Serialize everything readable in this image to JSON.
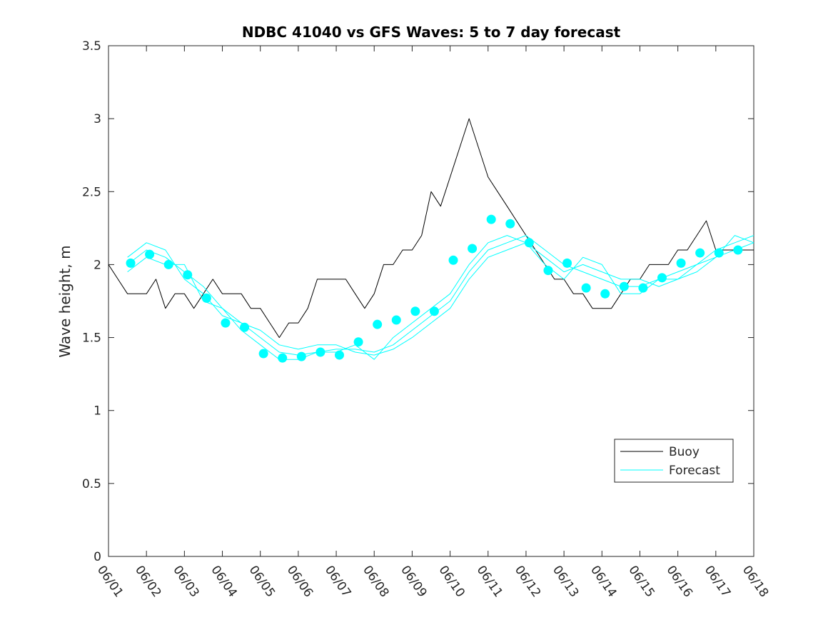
{
  "chart_data": {
    "type": "line",
    "title": "NDBC 41040 vs GFS Waves: 5 to 7 day forecast",
    "xlabel": "",
    "ylabel": "Wave height, m",
    "x_tick_labels": [
      "06/01",
      "06/02",
      "06/03",
      "06/04",
      "06/05",
      "06/06",
      "06/07",
      "06/08",
      "06/09",
      "06/10",
      "06/11",
      "06/12",
      "06/13",
      "06/14",
      "06/15",
      "06/16",
      "06/17",
      "06/18"
    ],
    "y_tick_labels": [
      "0",
      "0.5",
      "1",
      "1.5",
      "2",
      "2.5",
      "3",
      "3.5"
    ],
    "xlim": [
      "06/01",
      "06/18"
    ],
    "ylim": [
      0,
      3.5
    ],
    "grid": false,
    "legend_position": "lower-right",
    "colors": {
      "buoy": "#000000",
      "forecast": "#00ffff",
      "axis": "#262626"
    },
    "series": [
      {
        "name": "Buoy",
        "style": "line",
        "x": [
          "06/01 00:00",
          "06/01 06:00",
          "06/01 12:00",
          "06/01 18:00",
          "06/02 00:00",
          "06/02 06:00",
          "06/02 12:00",
          "06/02 18:00",
          "06/03 00:00",
          "06/03 06:00",
          "06/03 12:00",
          "06/03 18:00",
          "06/04 00:00",
          "06/04 06:00",
          "06/04 12:00",
          "06/04 18:00",
          "06/05 00:00",
          "06/05 06:00",
          "06/05 12:00",
          "06/05 18:00",
          "06/06 00:00",
          "06/06 06:00",
          "06/06 12:00",
          "06/06 18:00",
          "06/07 00:00",
          "06/07 06:00",
          "06/07 12:00",
          "06/07 18:00",
          "06/08 00:00",
          "06/08 06:00",
          "06/08 12:00",
          "06/08 18:00",
          "06/09 00:00",
          "06/09 06:00",
          "06/09 12:00",
          "06/09 18:00",
          "06/10 00:00",
          "06/10 06:00",
          "06/10 12:00",
          "06/10 18:00",
          "06/11 00:00",
          "06/11 06:00",
          "06/11 12:00",
          "06/11 18:00",
          "06/12 00:00",
          "06/12 06:00",
          "06/12 12:00",
          "06/12 18:00",
          "06/13 00:00",
          "06/13 06:00",
          "06/13 12:00",
          "06/13 18:00",
          "06/14 00:00",
          "06/14 06:00",
          "06/14 12:00",
          "06/14 18:00",
          "06/15 00:00",
          "06/15 06:00",
          "06/15 12:00",
          "06/15 18:00",
          "06/16 00:00",
          "06/16 06:00",
          "06/16 12:00",
          "06/16 18:00",
          "06/17 00:00",
          "06/17 06:00",
          "06/17 12:00",
          "06/17 18:00",
          "06/18 00:00"
        ],
        "values": [
          2.0,
          1.9,
          1.8,
          1.8,
          1.8,
          1.9,
          1.7,
          1.8,
          1.8,
          1.7,
          1.8,
          1.9,
          1.8,
          1.8,
          1.8,
          1.7,
          1.7,
          1.6,
          1.5,
          1.6,
          1.6,
          1.7,
          1.9,
          1.9,
          1.9,
          1.9,
          1.8,
          1.7,
          1.8,
          2.0,
          2.0,
          2.1,
          2.1,
          2.2,
          2.5,
          2.4,
          2.6,
          2.8,
          3.0,
          2.8,
          2.6,
          2.5,
          2.4,
          2.3,
          2.2,
          2.1,
          2.0,
          1.9,
          1.9,
          1.8,
          1.8,
          1.7,
          1.7,
          1.7,
          1.8,
          1.9,
          1.9,
          2.0,
          2.0,
          2.0,
          2.1,
          2.1,
          2.2,
          2.3,
          2.1,
          2.1,
          2.1,
          2.1,
          2.1
        ]
      },
      {
        "name": "Forecast",
        "style": "line",
        "x": [
          "06/01 12:00",
          "06/02 00:00",
          "06/02 12:00",
          "06/03 00:00",
          "06/03 12:00",
          "06/04 00:00",
          "06/04 12:00",
          "06/05 00:00",
          "06/05 12:00",
          "06/06 00:00",
          "06/06 12:00",
          "06/07 00:00",
          "06/07 12:00",
          "06/08 00:00",
          "06/08 12:00",
          "06/09 00:00",
          "06/09 12:00",
          "06/10 00:00",
          "06/10 12:00",
          "06/11 00:00",
          "06/11 12:00",
          "06/12 00:00",
          "06/12 12:00",
          "06/13 00:00",
          "06/13 12:00",
          "06/14 00:00",
          "06/14 12:00",
          "06/15 00:00",
          "06/15 12:00",
          "06/16 00:00",
          "06/16 12:00",
          "06/17 00:00",
          "06/17 12:00",
          "06/18 00:00"
        ],
        "values": [
          2.0,
          2.1,
          2.05,
          1.95,
          1.85,
          1.7,
          1.6,
          1.5,
          1.4,
          1.38,
          1.4,
          1.42,
          1.42,
          1.4,
          1.45,
          1.55,
          1.65,
          1.75,
          1.95,
          2.1,
          2.15,
          2.2,
          2.1,
          2.0,
          1.95,
          1.9,
          1.85,
          1.85,
          1.9,
          1.95,
          2.0,
          2.05,
          2.1,
          2.15
        ]
      },
      {
        "name": "",
        "style": "line",
        "x": [
          "06/01 12:00",
          "06/02 00:00",
          "06/02 12:00",
          "06/03 00:00",
          "06/03 12:00",
          "06/04 00:00",
          "06/04 12:00",
          "06/05 00:00",
          "06/05 12:00",
          "06/06 00:00",
          "06/06 12:00",
          "06/07 00:00",
          "06/07 12:00",
          "06/08 00:00",
          "06/08 12:00",
          "06/09 00:00",
          "06/09 12:00",
          "06/10 00:00",
          "06/10 12:00",
          "06/11 00:00",
          "06/11 12:00",
          "06/12 00:00",
          "06/12 12:00",
          "06/13 00:00",
          "06/13 12:00",
          "06/14 00:00",
          "06/14 12:00",
          "06/15 00:00",
          "06/15 12:00",
          "06/16 00:00",
          "06/16 12:00",
          "06/17 00:00",
          "06/17 12:00",
          "06/18 00:00"
        ],
        "values": [
          2.05,
          2.15,
          2.1,
          1.9,
          1.8,
          1.65,
          1.6,
          1.55,
          1.45,
          1.42,
          1.45,
          1.45,
          1.4,
          1.38,
          1.42,
          1.5,
          1.6,
          1.7,
          1.9,
          2.05,
          2.1,
          2.15,
          2.05,
          1.95,
          2.0,
          1.95,
          1.9,
          1.9,
          1.85,
          1.9,
          2.0,
          2.1,
          2.15,
          2.2
        ]
      },
      {
        "name": "",
        "style": "line",
        "x": [
          "06/01 12:00",
          "06/02 00:00",
          "06/02 12:00",
          "06/03 00:00",
          "06/03 12:00",
          "06/04 00:00",
          "06/04 12:00",
          "06/05 00:00",
          "06/05 12:00",
          "06/06 00:00",
          "06/06 12:00",
          "06/07 00:00",
          "06/07 12:00",
          "06/08 00:00",
          "06/08 12:00",
          "06/09 00:00",
          "06/09 12:00",
          "06/10 00:00",
          "06/10 12:00",
          "06/11 00:00",
          "06/11 12:00",
          "06/12 00:00",
          "06/12 12:00",
          "06/13 00:00",
          "06/13 12:00",
          "06/14 00:00",
          "06/14 12:00",
          "06/15 00:00",
          "06/15 12:00",
          "06/16 00:00",
          "06/16 12:00",
          "06/17 00:00",
          "06/17 12:00",
          "06/18 00:00"
        ],
        "values": [
          1.95,
          2.05,
          2.0,
          2.0,
          1.75,
          1.7,
          1.55,
          1.45,
          1.35,
          1.35,
          1.4,
          1.4,
          1.45,
          1.35,
          1.5,
          1.6,
          1.7,
          1.8,
          2.0,
          2.15,
          2.2,
          2.15,
          2.0,
          1.9,
          2.05,
          2.0,
          1.8,
          1.8,
          1.9,
          1.9,
          1.95,
          2.05,
          2.2,
          2.15
        ]
      },
      {
        "name": "",
        "style": "markers",
        "x": [
          "06/01 14:00",
          "06/02 02:00",
          "06/02 14:00",
          "06/03 02:00",
          "06/03 14:00",
          "06/04 02:00",
          "06/04 14:00",
          "06/05 02:00",
          "06/05 14:00",
          "06/06 02:00",
          "06/06 14:00",
          "06/07 02:00",
          "06/07 14:00",
          "06/08 02:00",
          "06/08 14:00",
          "06/09 02:00",
          "06/09 14:00",
          "06/10 02:00",
          "06/10 14:00",
          "06/11 02:00",
          "06/11 14:00",
          "06/12 02:00",
          "06/12 14:00",
          "06/13 02:00",
          "06/13 14:00",
          "06/14 02:00",
          "06/14 14:00",
          "06/15 02:00",
          "06/15 14:00",
          "06/16 02:00",
          "06/16 14:00",
          "06/17 02:00",
          "06/17 14:00"
        ],
        "values": [
          2.01,
          2.07,
          2.0,
          1.93,
          1.77,
          1.6,
          1.57,
          1.39,
          1.36,
          1.37,
          1.4,
          1.38,
          1.47,
          1.59,
          1.62,
          1.68,
          1.68,
          2.03,
          2.11,
          2.31,
          2.28,
          2.15,
          1.96,
          2.01,
          1.84,
          1.8,
          1.85,
          1.84,
          1.91,
          2.01,
          2.08,
          2.08,
          2.1
        ]
      }
    ],
    "legend": [
      {
        "label": "Buoy",
        "color": "#000000"
      },
      {
        "label": "Forecast",
        "color": "#00ffff"
      }
    ]
  }
}
